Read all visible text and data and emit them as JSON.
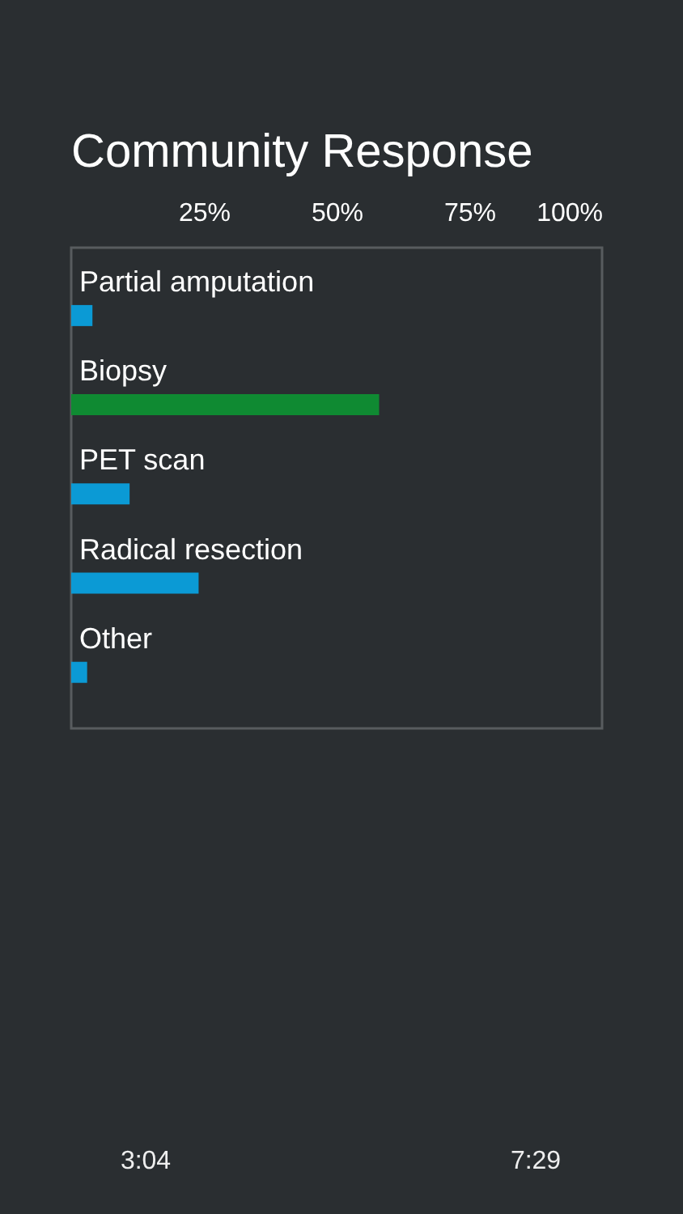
{
  "chart_data": {
    "type": "bar",
    "orientation": "horizontal",
    "title": "Community Response",
    "categories": [
      "Partial amputation",
      "Biopsy",
      "PET scan",
      "Radical resection",
      "Other"
    ],
    "values": [
      4,
      58,
      11,
      24,
      3
    ],
    "colors": [
      "#0b9ad5",
      "#0f8a32",
      "#0b9ad5",
      "#0b9ad5",
      "#0b9ad5"
    ],
    "xlim": [
      0,
      100
    ],
    "xticks": [
      {
        "value": 25,
        "label": "25%"
      },
      {
        "value": 50,
        "label": "50%"
      },
      {
        "value": 75,
        "label": "75%"
      },
      {
        "value": 100,
        "label": "100%"
      }
    ],
    "annotations": [
      "3:04",
      "7:29"
    ]
  }
}
